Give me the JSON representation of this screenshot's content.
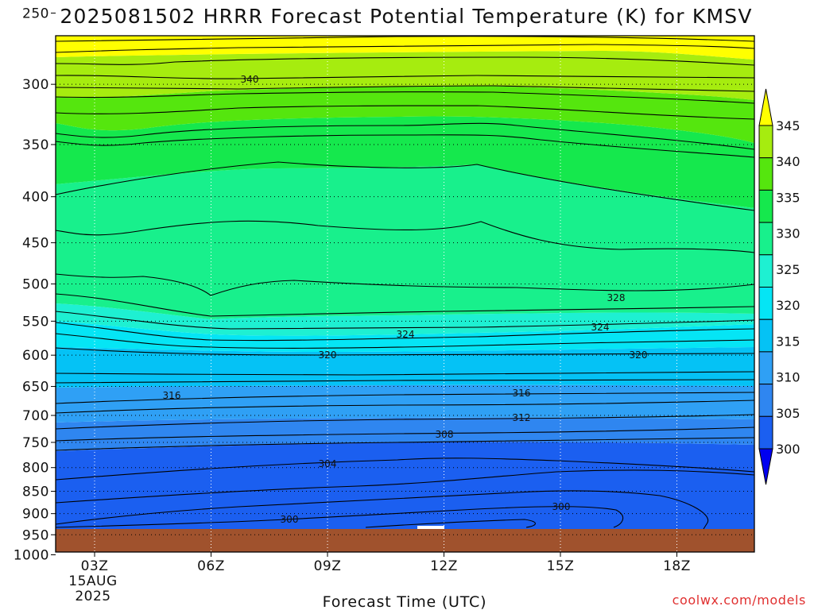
{
  "chart_data": {
    "type": "contour",
    "title": "2025081502 HRRR Forecast Potential Temperature (K) for KMSV",
    "xlabel": "Forecast Time (UTC)",
    "credit": "coolwx.com/models",
    "x_ticks": [
      {
        "label": "03Z",
        "sub1": "15AUG",
        "sub2": "2025"
      },
      {
        "label": "06Z"
      },
      {
        "label": "09Z"
      },
      {
        "label": "12Z"
      },
      {
        "label": "15Z"
      },
      {
        "label": "18Z"
      }
    ],
    "y_axis": {
      "scale": "log-pressure",
      "units": "hPa",
      "range": [
        1000,
        175
      ],
      "ticks": [
        250,
        300,
        350,
        400,
        450,
        500,
        550,
        600,
        650,
        700,
        750,
        800,
        850,
        900,
        950,
        1000
      ]
    },
    "colorbar": {
      "levels": [
        300,
        305,
        310,
        315,
        320,
        325,
        330,
        335,
        340,
        345
      ],
      "colors": [
        "#0000f0",
        "#1b5ff0",
        "#2f86f0",
        "#2fa0f5",
        "#05c2f5",
        "#05e5f5",
        "#1ef0d2",
        "#18f08c",
        "#15e84d",
        "#55e60e",
        "#a6ec0f",
        "#ffff00"
      ]
    },
    "contour_labels": [
      {
        "text": "340"
      },
      {
        "text": "328"
      },
      {
        "text": "324"
      },
      {
        "text": "324"
      },
      {
        "text": "320"
      },
      {
        "text": "320"
      },
      {
        "text": "316"
      },
      {
        "text": "316"
      },
      {
        "text": "312"
      },
      {
        "text": "308"
      },
      {
        "text": "304"
      },
      {
        "text": "300"
      },
      {
        "text": "300"
      }
    ],
    "grid": true
  }
}
